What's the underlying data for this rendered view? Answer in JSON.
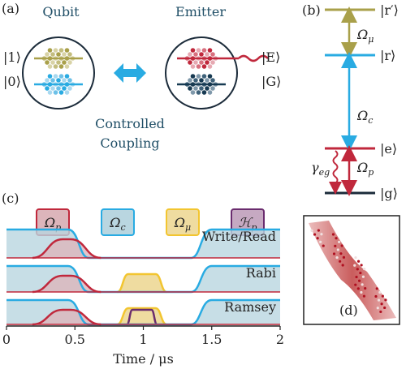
{
  "panel_a": {
    "label": "(a)",
    "qubit": "Qubit",
    "emitter": "Emitter",
    "states": [
      "|1⟩",
      "|0⟩",
      "|E⟩",
      "|G⟩"
    ],
    "caption": [
      "Controlled",
      "Coupling"
    ]
  },
  "panel_b": {
    "label": "(b)",
    "levels": [
      "|r′⟩",
      "|r⟩",
      "|e⟩",
      "|g⟩"
    ],
    "couplings": [
      {
        "base": "Ω",
        "sub": "μ"
      },
      {
        "base": "Ω",
        "sub": "c"
      },
      {
        "base": "Ω",
        "sub": "p"
      }
    ],
    "decay": {
      "base": "γ",
      "sub": "eg"
    }
  },
  "panel_c": {
    "label": "(c)",
    "legend": [
      {
        "base": "Ω",
        "sub": "p"
      },
      {
        "base": "Ω",
        "sub": "c"
      },
      {
        "base": "Ω",
        "sub": "μ"
      },
      {
        "base": "ℋ",
        "sub": "p"
      }
    ],
    "rows": [
      "Write/Read",
      "Rabi",
      "Ramsey"
    ],
    "xlabel": "Time / μs",
    "xlim": [
      0,
      2
    ],
    "xticks": [
      0,
      0.5,
      1,
      1.5,
      2
    ]
  },
  "panel_d": {
    "label": "(d)"
  }
}
